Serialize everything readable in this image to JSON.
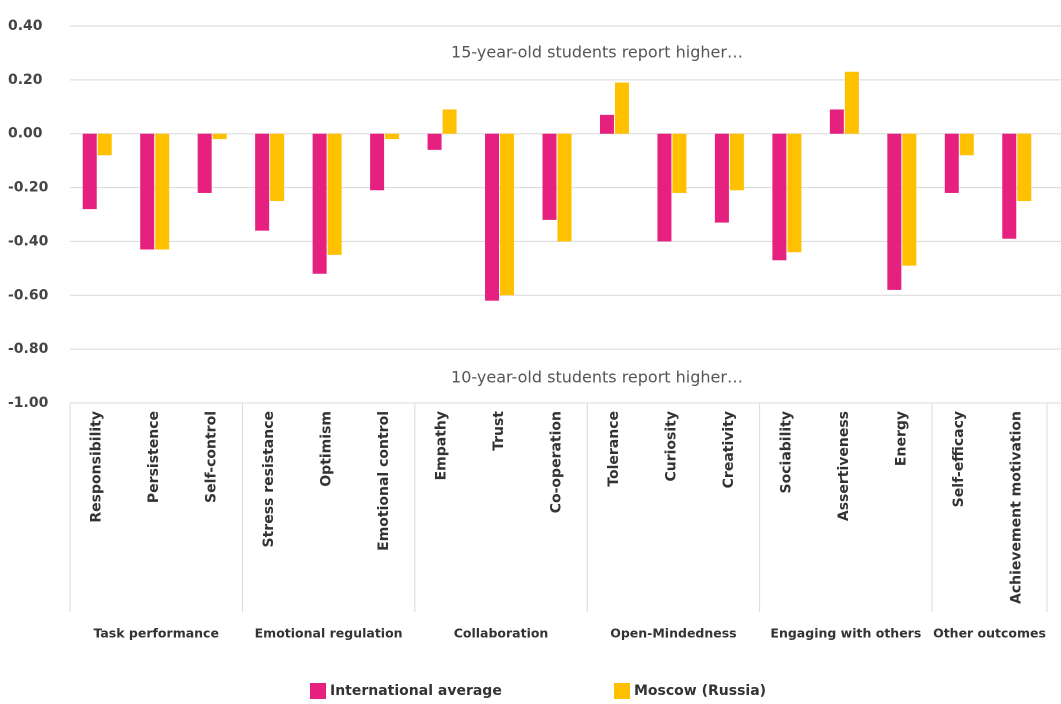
{
  "chart_data": {
    "type": "bar",
    "annotations": [
      "15-year-old students report higher…",
      "10-year-old students report higher…"
    ],
    "categories": [
      "Responsibility",
      "Persistence",
      "Self-control",
      "Stress resistance",
      "Optimism",
      "Emotional control",
      "Empathy",
      "Trust",
      "Co-operation",
      "Tolerance",
      "Curiosity",
      "Creativity",
      "Sociability",
      "Assertiveness",
      "Energy",
      "Self-efficacy",
      "Achievement motivation"
    ],
    "groups": [
      {
        "name": "Task performance",
        "size": 3
      },
      {
        "name": "Emotional regulation",
        "size": 3
      },
      {
        "name": "Collaboration",
        "size": 3
      },
      {
        "name": "Open-Mindedness",
        "size": 3
      },
      {
        "name": "Engaging with others",
        "size": 3
      },
      {
        "name": "Other outcomes",
        "size": 2
      }
    ],
    "series": [
      {
        "name": "International average",
        "color": "#e6207f",
        "values": [
          -0.28,
          -0.43,
          -0.22,
          -0.36,
          -0.52,
          -0.21,
          -0.06,
          -0.62,
          -0.32,
          0.07,
          -0.4,
          -0.33,
          -0.47,
          0.09,
          -0.58,
          -0.22,
          -0.39
        ]
      },
      {
        "name": "Moscow (Russia)",
        "color": "#ffc000",
        "values": [
          -0.08,
          -0.43,
          -0.02,
          -0.25,
          -0.45,
          -0.02,
          0.09,
          -0.6,
          -0.4,
          0.19,
          -0.22,
          -0.21,
          -0.44,
          0.23,
          -0.49,
          -0.08,
          -0.25
        ]
      }
    ],
    "ylim": [
      -1.0,
      0.4
    ],
    "yticks": [
      {
        "value": -1.0,
        "label": "-1.00"
      },
      {
        "value": -0.8,
        "label": "-0.80"
      },
      {
        "value": -0.6,
        "label": "-0.60"
      },
      {
        "value": -0.4,
        "label": "-0.40"
      },
      {
        "value": -0.2,
        "label": "-0.20"
      },
      {
        "value": 0,
        "label": "0.00"
      },
      {
        "value": 0.2,
        "label": "0.20"
      },
      {
        "value": 0.4,
        "label": "0.40"
      }
    ],
    "grid": true
  }
}
